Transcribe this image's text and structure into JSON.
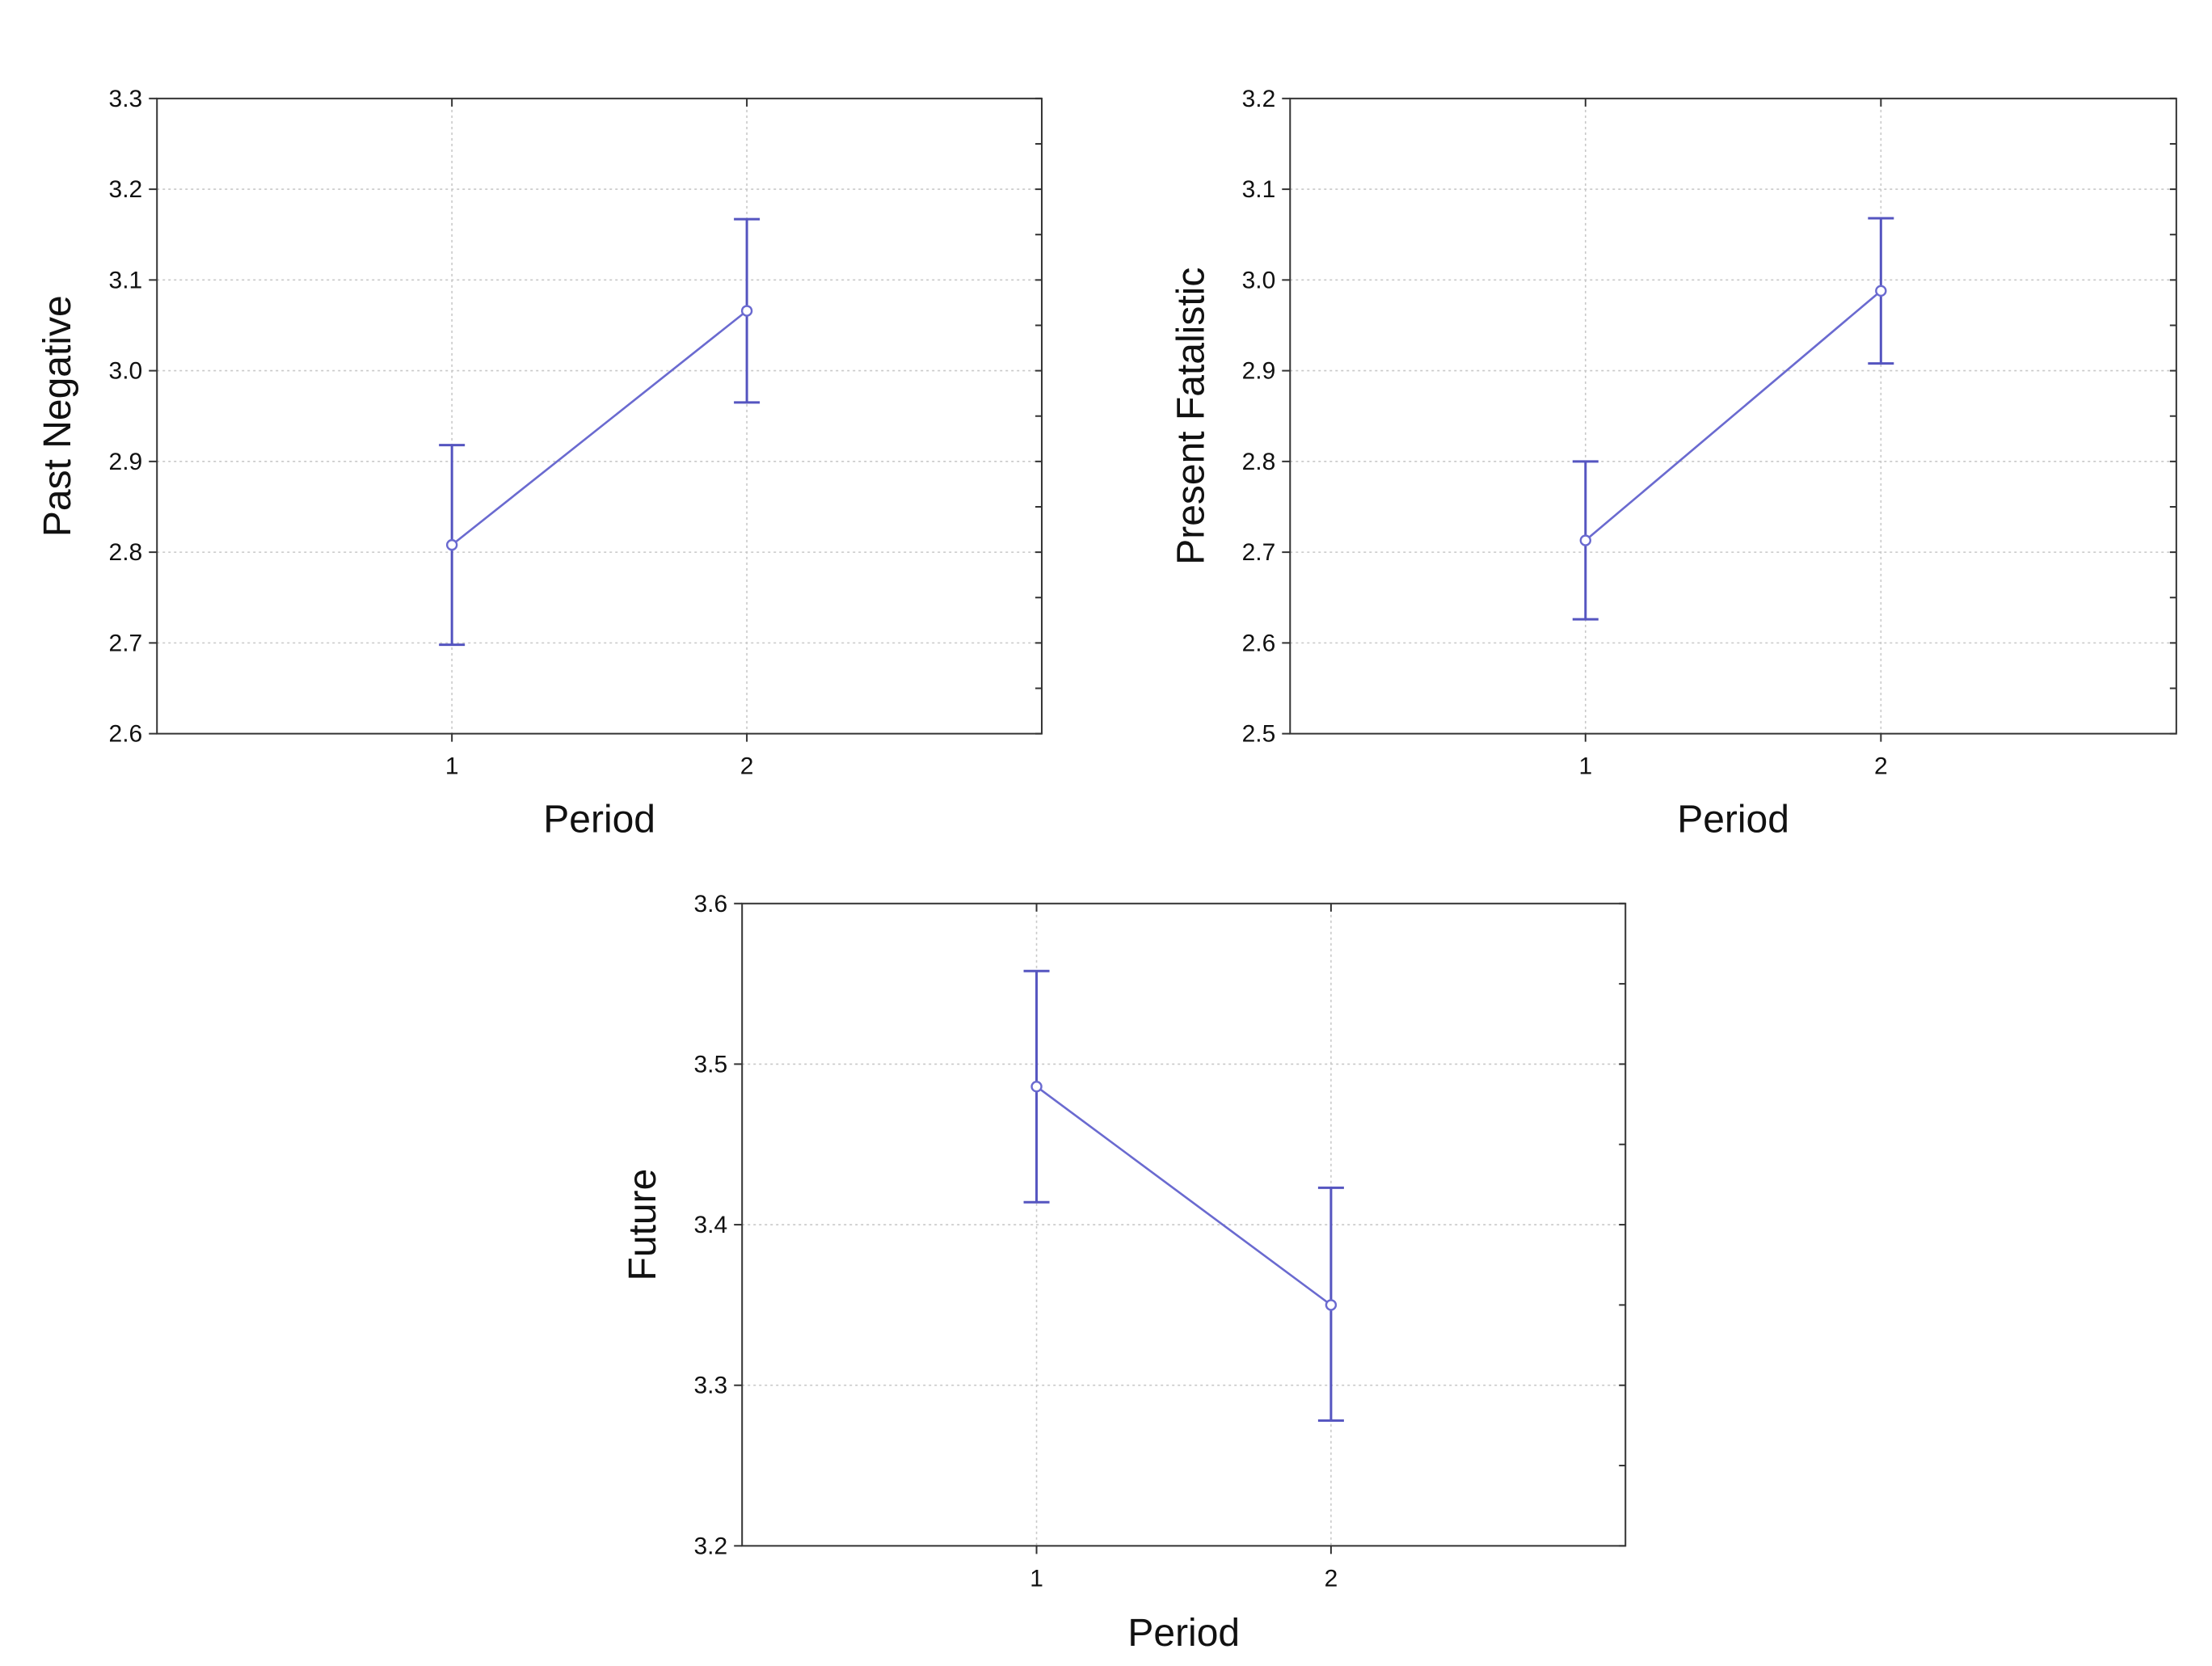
{
  "chart_data": [
    {
      "type": "line",
      "title": "",
      "xlabel": "Period",
      "ylabel": "Past Negative",
      "categories": [
        "1",
        "2"
      ],
      "ylim": [
        2.6,
        3.3
      ],
      "yticks": [
        "2.6",
        "2.7",
        "2.8",
        "2.9",
        "3.0",
        "3.1",
        "3.2",
        "3.3"
      ],
      "grid": true,
      "series": [
        {
          "values": [
            2.808,
            3.066
          ],
          "lower": [
            2.698,
            2.965
          ],
          "upper": [
            2.918,
            3.167
          ]
        }
      ]
    },
    {
      "type": "line",
      "title": "",
      "xlabel": "Period",
      "ylabel": "Present Fatalistic",
      "categories": [
        "1",
        "2"
      ],
      "ylim": [
        2.5,
        3.2
      ],
      "yticks": [
        "2.5",
        "2.6",
        "2.7",
        "2.8",
        "2.9",
        "3.0",
        "3.1",
        "3.2"
      ],
      "grid": true,
      "series": [
        {
          "values": [
            2.713,
            2.988
          ],
          "lower": [
            2.626,
            2.908
          ],
          "upper": [
            2.8,
            3.068
          ]
        }
      ]
    },
    {
      "type": "line",
      "title": "",
      "xlabel": "Period",
      "ylabel": "Future",
      "categories": [
        "1",
        "2"
      ],
      "ylim": [
        3.2,
        3.6
      ],
      "yticks": [
        "3.2",
        "3.3",
        "3.4",
        "3.5",
        "3.6"
      ],
      "grid": true,
      "series": [
        {
          "values": [
            3.486,
            3.35
          ],
          "lower": [
            3.414,
            3.278
          ],
          "upper": [
            3.558,
            3.423
          ]
        }
      ]
    }
  ],
  "colors": {
    "series": "#6a6ad0",
    "frame": "#333333",
    "grid": "#c8c8c8"
  }
}
